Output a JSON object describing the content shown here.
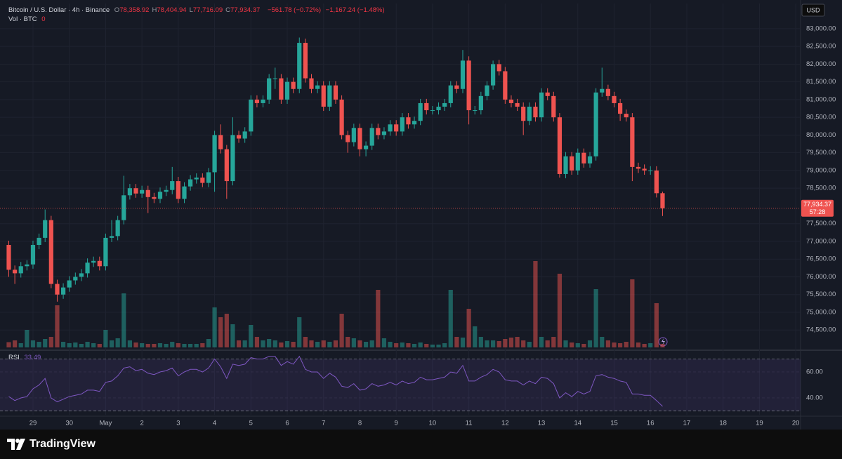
{
  "chart_data": {
    "type": "candlestick",
    "symbol": "Bitcoin / U.S. Dollar · 4h · Binance",
    "ohlc": [
      {
        "key": "O",
        "value": "78,358.92"
      },
      {
        "key": "H",
        "value": "78,404.94"
      },
      {
        "key": "L",
        "value": "77,716.09"
      },
      {
        "key": "C",
        "value": "77,934.37"
      }
    ],
    "changes": [
      "−561.78 (−0.72%)",
      "−1,167.24 (−1.48%)"
    ],
    "volume_label": "Vol · BTC",
    "volume_value": "0",
    "currency": "USD",
    "countdown": "57:28",
    "up_color": "#26a69a",
    "down_color": "#ef5350",
    "open": [
      76900,
      76200,
      76100,
      76300,
      76350,
      76900,
      77100,
      77600,
      75800,
      75500,
      75700,
      75900,
      76000,
      76100,
      76400,
      76450,
      76300,
      77100,
      77150,
      77600,
      78300,
      78500,
      78350,
      78450,
      78250,
      78200,
      78400,
      78450,
      78700,
      78200,
      78550,
      78750,
      78800,
      78650,
      78950,
      80000,
      79600,
      78700,
      80000,
      79900,
      80100,
      81000,
      80900,
      81000,
      81600,
      81600,
      81000,
      81500,
      81300,
      82600,
      81600,
      81300,
      81400,
      80800,
      81400,
      81000,
      80000,
      79800,
      80200,
      79600,
      79700,
      80200,
      80000,
      80100,
      80300,
      80100,
      80500,
      80300,
      80400,
      80900,
      80700,
      80700,
      80800,
      80900,
      81400,
      81300,
      82100,
      80700,
      80700,
      81100,
      81400,
      82000,
      81800,
      81000,
      80900,
      80800,
      80400,
      80800,
      80500,
      81200,
      81100,
      80500,
      78900,
      79400,
      79000,
      79500,
      79200,
      79400,
      81200,
      81300,
      81100,
      80900,
      80600,
      80500,
      79100,
      79050,
      79000,
      79000,
      78358.92
    ],
    "high": [
      77020,
      76320,
      76420,
      76470,
      77020,
      77220,
      77900,
      77720,
      75920,
      75820,
      76020,
      76120,
      76220,
      76520,
      76570,
      76570,
      77220,
      77600,
      77720,
      78850,
      78620,
      78620,
      78570,
      78570,
      78370,
      78520,
      78570,
      79100,
      78820,
      78670,
      78870,
      78920,
      78920,
      79070,
      80120,
      80300,
      79720,
      80500,
      80120,
      80220,
      81120,
      81120,
      81120,
      81720,
      81900,
      81720,
      81620,
      81620,
      82750,
      82720,
      81720,
      81520,
      81520,
      81520,
      81520,
      81120,
      80120,
      80320,
      80320,
      79820,
      80320,
      80320,
      80220,
      80420,
      80420,
      80620,
      80620,
      80520,
      81020,
      81020,
      80820,
      80920,
      81020,
      81520,
      81520,
      82400,
      82220,
      80820,
      81220,
      81520,
      82100,
      82120,
      81920,
      81120,
      81020,
      80920,
      80920,
      80920,
      81320,
      81320,
      81220,
      80620,
      79520,
      79520,
      79620,
      79620,
      79520,
      81320,
      81900,
      81420,
      81220,
      81020,
      80720,
      80620,
      79220,
      79170,
      79120,
      79120,
      78404.94
    ],
    "low": [
      76000,
      75800,
      75980,
      76180,
      76230,
      76780,
      76980,
      75680,
      75300,
      75380,
      75580,
      75780,
      75880,
      75980,
      76280,
      76180,
      76180,
      76980,
      77030,
      77480,
      78180,
      78230,
      78230,
      77800,
      78080,
      78080,
      78280,
      78330,
      78080,
      78080,
      78430,
      78630,
      78530,
      78530,
      78400,
      79480,
      78200,
      78580,
      79780,
      79780,
      79980,
      80780,
      80780,
      80880,
      81300,
      80880,
      80880,
      81180,
      81180,
      81480,
      81180,
      81180,
      80680,
      80680,
      80880,
      79880,
      79500,
      79680,
      79400,
      79400,
      79580,
      79880,
      79880,
      79980,
      79980,
      79980,
      80180,
      80180,
      80280,
      80580,
      80580,
      80580,
      80680,
      80780,
      81180,
      81180,
      80300,
      80580,
      80580,
      80980,
      81280,
      81680,
      80880,
      80780,
      80680,
      80000,
      80280,
      80380,
      80380,
      80980,
      80380,
      78800,
      78780,
      78880,
      78880,
      79080,
      79080,
      79280,
      81080,
      80980,
      80780,
      80400,
      80380,
      78700,
      78930,
      78880,
      78880,
      78238,
      77716.09
    ],
    "close": [
      76200,
      76100,
      76300,
      76350,
      76900,
      77100,
      77600,
      75800,
      75500,
      75700,
      75900,
      76000,
      76100,
      76400,
      76450,
      76300,
      77100,
      77150,
      77600,
      78300,
      78500,
      78350,
      78450,
      78250,
      78200,
      78400,
      78450,
      78700,
      78200,
      78550,
      78750,
      78800,
      78650,
      78950,
      80000,
      79600,
      78700,
      80000,
      79900,
      80100,
      81000,
      80900,
      81000,
      81600,
      81600,
      81000,
      81500,
      81300,
      82600,
      81600,
      81300,
      81400,
      80800,
      81400,
      81000,
      80000,
      79800,
      80200,
      79600,
      79700,
      80200,
      80000,
      80100,
      80300,
      80100,
      80500,
      80300,
      80400,
      80900,
      80700,
      80700,
      80800,
      80900,
      81400,
      81300,
      82100,
      80700,
      80700,
      81100,
      81400,
      82000,
      81800,
      81000,
      80900,
      80800,
      80400,
      80800,
      80500,
      81200,
      81100,
      80500,
      78900,
      79400,
      79000,
      79500,
      79200,
      79400,
      81200,
      81300,
      81100,
      80900,
      80600,
      80500,
      79100,
      79050,
      79000,
      79000,
      78358.92,
      77934.37
    ],
    "volume": [
      150,
      200,
      120,
      500,
      200,
      160,
      240,
      300,
      1200,
      160,
      120,
      140,
      100,
      160,
      120,
      100,
      500,
      200,
      260,
      1540,
      200,
      140,
      120,
      100,
      100,
      120,
      100,
      160,
      120,
      100,
      100,
      100,
      120,
      240,
      1140,
      860,
      960,
      660,
      200,
      200,
      640,
      300,
      200,
      240,
      200,
      140,
      180,
      160,
      860,
      300,
      200,
      160,
      200,
      160,
      200,
      960,
      300,
      260,
      200,
      160,
      200,
      1640,
      260,
      160,
      120,
      140,
      120,
      100,
      140,
      100,
      80,
      80,
      120,
      1640,
      300,
      280,
      1100,
      600,
      300,
      200,
      200,
      180,
      240,
      280,
      300,
      200,
      160,
      2460,
      300,
      200,
      300,
      2100,
      200,
      140,
      120,
      100,
      200,
      1660,
      300,
      200,
      140,
      120,
      160,
      1940,
      140,
      100,
      120,
      1260,
      100
    ],
    "ylim": [
      73970,
      83710
    ],
    "yticks": [
      {
        "value": 74500,
        "label": "74,500.00"
      },
      {
        "value": 75000,
        "label": "75,000.00"
      },
      {
        "value": 75500,
        "label": "75,500.00"
      },
      {
        "value": 76000,
        "label": "76,000.00"
      },
      {
        "value": 76500,
        "label": "76,500.00"
      },
      {
        "value": 77000,
        "label": "77,000.00"
      },
      {
        "value": 77500,
        "label": "77,500.00"
      },
      {
        "value": 78500,
        "label": "78,500.00"
      },
      {
        "value": 79000,
        "label": "79,000.00"
      },
      {
        "value": 79500,
        "label": "79,500.00"
      },
      {
        "value": 80000,
        "label": "80,000.00"
      },
      {
        "value": 80500,
        "label": "80,500.00"
      },
      {
        "value": 81000,
        "label": "81,000.00"
      },
      {
        "value": 81500,
        "label": "81,500.00"
      },
      {
        "value": 82000,
        "label": "82,000.00"
      },
      {
        "value": 82500,
        "label": "82,500.00"
      },
      {
        "value": 83000,
        "label": "83,000.00"
      }
    ],
    "xlim": [
      -1.45,
      130.8
    ],
    "xticks": [
      {
        "value": 4,
        "label": "29"
      },
      {
        "value": 10,
        "label": "30"
      },
      {
        "value": 16,
        "label": "May"
      },
      {
        "value": 22,
        "label": "2"
      },
      {
        "value": 28,
        "label": "3"
      },
      {
        "value": 34,
        "label": "4"
      },
      {
        "value": 40,
        "label": "5"
      },
      {
        "value": 46,
        "label": "6"
      },
      {
        "value": 52,
        "label": "7"
      },
      {
        "value": 58,
        "label": "8"
      },
      {
        "value": 64,
        "label": "9"
      },
      {
        "value": 70,
        "label": "10"
      },
      {
        "value": 76,
        "label": "11"
      },
      {
        "value": 82,
        "label": "12"
      },
      {
        "value": 88,
        "label": "13"
      },
      {
        "value": 94,
        "label": "14"
      },
      {
        "value": 100,
        "label": "15"
      },
      {
        "value": 106,
        "label": "16"
      },
      {
        "value": 112,
        "label": "17"
      },
      {
        "value": 118,
        "label": "18"
      },
      {
        "value": 124,
        "label": "19"
      },
      {
        "value": 130,
        "label": "20"
      }
    ],
    "grid": true,
    "rsi_label": "RSI",
    "rsi_color": "#7e57c2",
    "rsi": [
      41,
      38,
      40,
      41,
      47,
      50,
      55,
      40,
      37,
      39,
      41,
      42,
      43,
      46,
      46,
      45,
      52,
      53,
      57,
      63,
      64,
      61,
      62,
      59,
      58,
      60,
      61,
      63,
      57,
      60,
      62,
      62,
      60,
      63,
      70,
      64,
      55,
      66,
      65,
      66,
      71,
      70,
      70,
      72,
      72,
      65,
      68,
      66,
      72,
      62,
      60,
      60,
      55,
      59,
      56,
      49,
      48,
      51,
      46,
      47,
      51,
      49,
      50,
      52,
      50,
      53,
      51,
      52,
      56,
      54,
      54,
      55,
      56,
      60,
      59,
      65,
      53,
      53,
      56,
      58,
      62,
      60,
      54,
      53,
      53,
      50,
      53,
      51,
      56,
      55,
      51,
      40,
      44,
      41,
      45,
      43,
      45,
      57,
      58,
      56,
      55,
      53,
      52,
      43,
      43,
      42,
      42,
      38,
      33.49
    ],
    "rsi_ylim": [
      27,
      73.5
    ],
    "rsi_yticks": [
      {
        "value": 60,
        "label": "60.00"
      },
      {
        "value": 40,
        "label": "40.00"
      }
    ],
    "rsi_bands": [
      70,
      30
    ]
  },
  "footer": {
    "brand": "TradingView"
  }
}
